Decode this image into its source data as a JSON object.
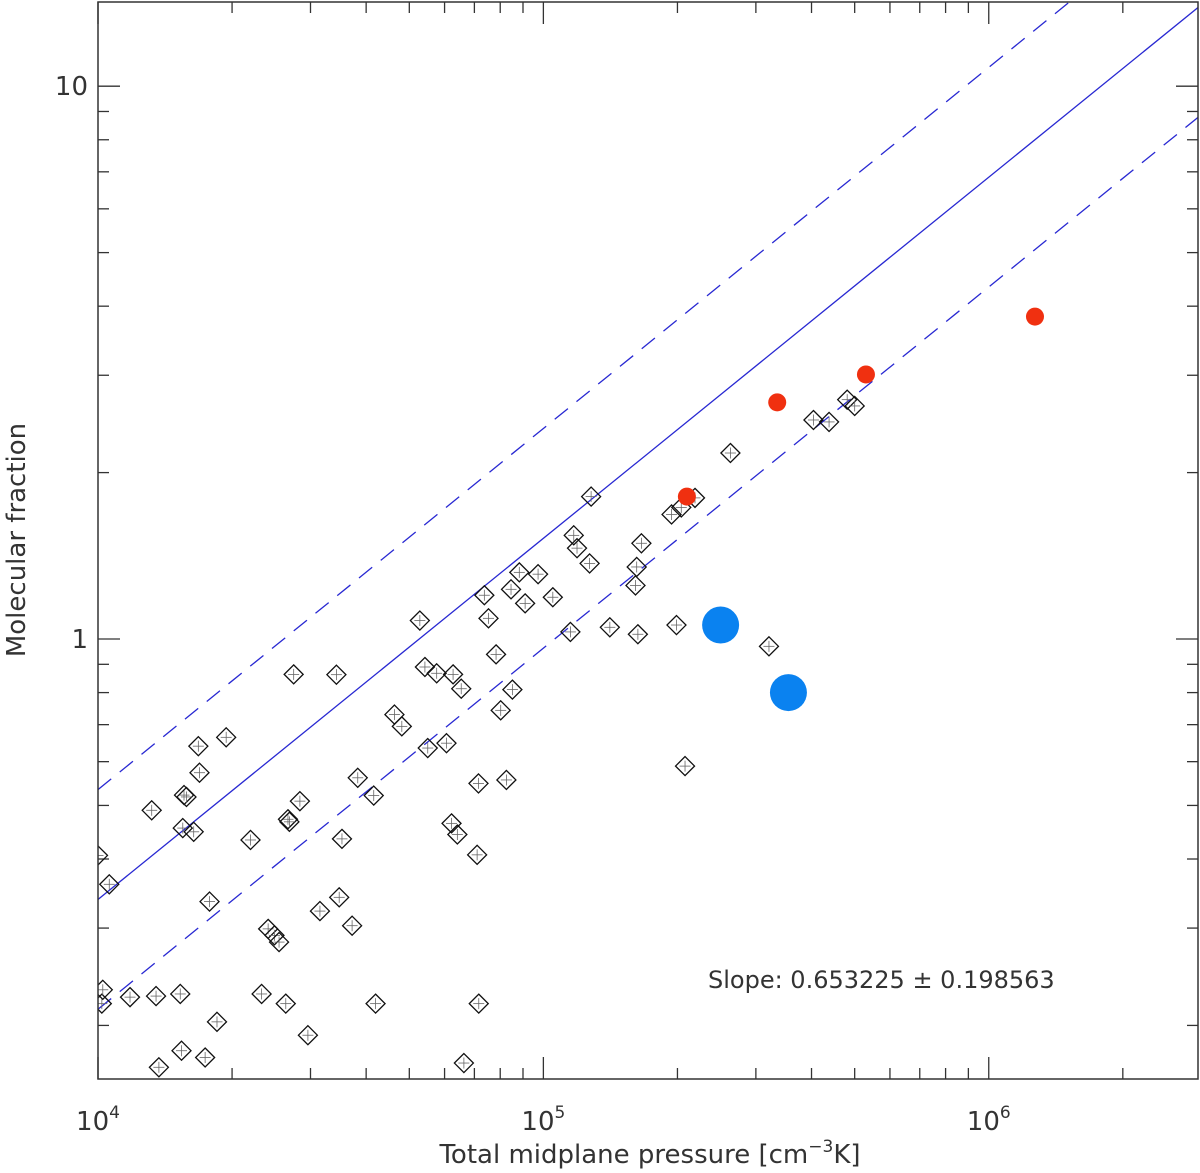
{
  "chart_data": {
    "type": "scatter",
    "xlabel": "Total midplane pressure [cm",
    "xlabel_sup": "−3",
    "xlabel_end": "K]",
    "ylabel": "Molecular fraction",
    "xscale": "log",
    "yscale": "log",
    "xlim": [
      10000,
      2950000
    ],
    "ylim": [
      0.16,
      14.2
    ],
    "x_ticks": [
      {
        "value": 10000,
        "base": "10",
        "exp": "4"
      },
      {
        "value": 100000,
        "base": "10",
        "exp": "5"
      },
      {
        "value": 1000000,
        "base": "10",
        "exp": "6"
      }
    ],
    "y_ticks": [
      {
        "value": 1,
        "label": "1"
      },
      {
        "value": 10,
        "label": "10"
      }
    ],
    "annotation": "Slope: 0.653225 ± 0.198563",
    "colors": {
      "fit": "#2828d2",
      "red": "#f03010",
      "blue": "#0a82f0",
      "diamond": "#111111"
    },
    "fit": {
      "slope": 0.653225,
      "slope_err": 0.198563,
      "x0": 10000,
      "y0": 0.338,
      "band_factor": 1.58
    },
    "series": [
      {
        "marker": "diamond",
        "color": "#111111",
        "points": [
          [
            10000,
            0.406
          ],
          [
            10200,
            0.219
          ],
          [
            10250,
            0.232
          ],
          [
            10600,
            0.36
          ],
          [
            11800,
            0.225
          ],
          [
            13200,
            0.49
          ],
          [
            13500,
            0.226
          ],
          [
            13700,
            0.168
          ],
          [
            15300,
            0.228
          ],
          [
            15400,
            0.18
          ],
          [
            15500,
            0.455
          ],
          [
            15600,
            0.522
          ],
          [
            15800,
            0.518
          ],
          [
            16400,
            0.448
          ],
          [
            16800,
            0.64
          ],
          [
            16900,
            0.573
          ],
          [
            17400,
            0.175
          ],
          [
            17800,
            0.335
          ],
          [
            18500,
            0.203
          ],
          [
            19400,
            0.664
          ],
          [
            22000,
            0.433
          ],
          [
            23300,
            0.228
          ],
          [
            24100,
            0.299
          ],
          [
            24900,
            0.291
          ],
          [
            25500,
            0.283
          ],
          [
            26400,
            0.219
          ],
          [
            26700,
            0.472
          ],
          [
            26900,
            0.467
          ],
          [
            27500,
            0.863
          ],
          [
            28400,
            0.509
          ],
          [
            29600,
            0.192
          ],
          [
            31500,
            0.322
          ],
          [
            34300,
            0.862
          ],
          [
            34800,
            0.341
          ],
          [
            35300,
            0.435
          ],
          [
            37200,
            0.303
          ],
          [
            38300,
            0.561
          ],
          [
            41600,
            0.521
          ],
          [
            42000,
            0.219
          ],
          [
            46300,
            0.73
          ],
          [
            48100,
            0.695
          ],
          [
            52800,
            1.08
          ],
          [
            54200,
            0.89
          ],
          [
            55000,
            0.635
          ],
          [
            57600,
            0.867
          ],
          [
            60600,
            0.648
          ],
          [
            62200,
            0.464
          ],
          [
            62700,
            0.863
          ],
          [
            64100,
            0.443
          ],
          [
            65400,
            0.813
          ],
          [
            66300,
            0.171
          ],
          [
            71000,
            0.407
          ],
          [
            71500,
            0.548
          ],
          [
            71600,
            0.219
          ],
          [
            73700,
            1.2
          ],
          [
            75300,
            1.09
          ],
          [
            78300,
            0.938
          ],
          [
            80200,
            0.743
          ],
          [
            82600,
            0.556
          ],
          [
            84600,
            1.23
          ],
          [
            85200,
            0.81
          ],
          [
            88300,
            1.32
          ],
          [
            91000,
            1.16
          ],
          [
            97300,
            1.31
          ],
          [
            105000,
            1.19
          ],
          [
            115000,
            1.03
          ],
          [
            117000,
            1.54
          ],
          [
            119000,
            1.46
          ],
          [
            127000,
            1.37
          ],
          [
            128000,
            1.81
          ],
          [
            141000,
            1.05
          ],
          [
            161000,
            1.25
          ],
          [
            162000,
            1.35
          ],
          [
            163000,
            1.02
          ],
          [
            166000,
            1.49
          ],
          [
            194000,
            1.68
          ],
          [
            199000,
            1.06
          ],
          [
            204000,
            1.73
          ],
          [
            208000,
            0.589
          ],
          [
            219000,
            1.8
          ],
          [
            263000,
            2.17
          ],
          [
            321000,
            0.97
          ],
          [
            404000,
            2.49
          ],
          [
            438000,
            2.47
          ],
          [
            481000,
            2.71
          ],
          [
            500000,
            2.64
          ]
        ]
      },
      {
        "marker": "circle",
        "color": "#f03010",
        "size": "small",
        "points": [
          [
            210000,
            1.81
          ],
          [
            335000,
            2.68
          ],
          [
            530000,
            3.01
          ],
          [
            1270000,
            3.83
          ]
        ]
      },
      {
        "marker": "circle",
        "color": "#0a82f0",
        "size": "large",
        "points": [
          [
            250000,
            1.06
          ],
          [
            355000,
            0.8
          ]
        ]
      }
    ]
  }
}
